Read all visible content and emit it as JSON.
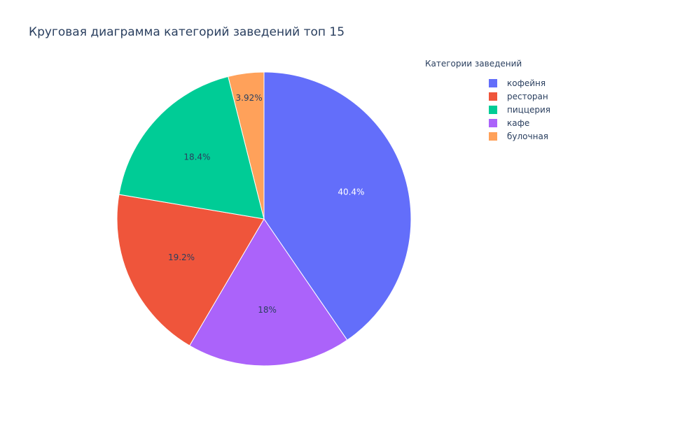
{
  "chart_data": {
    "type": "pie",
    "title": "Круговая диаграмма категорий заведений топ 15",
    "legend_title": "Категории заведений",
    "legend_placement": "right",
    "slices": [
      {
        "label": "кофейня",
        "value": 40.4,
        "text": "40.4%",
        "color": "#636efa"
      },
      {
        "label": "кафе",
        "value": 18.0,
        "text": "18%",
        "color": "#ab63fa"
      },
      {
        "label": "ресторан",
        "value": 19.2,
        "text": "19.2%",
        "color": "#ef553b"
      },
      {
        "label": "пиццерия",
        "value": 18.4,
        "text": "18.4%",
        "color": "#00cc96"
      },
      {
        "label": "булочная",
        "value": 3.92,
        "text": "3.92%",
        "color": "#ffa15a"
      }
    ],
    "legend_order": [
      "кофейня",
      "ресторан",
      "пиццерия",
      "кафе",
      "булочная"
    ]
  }
}
